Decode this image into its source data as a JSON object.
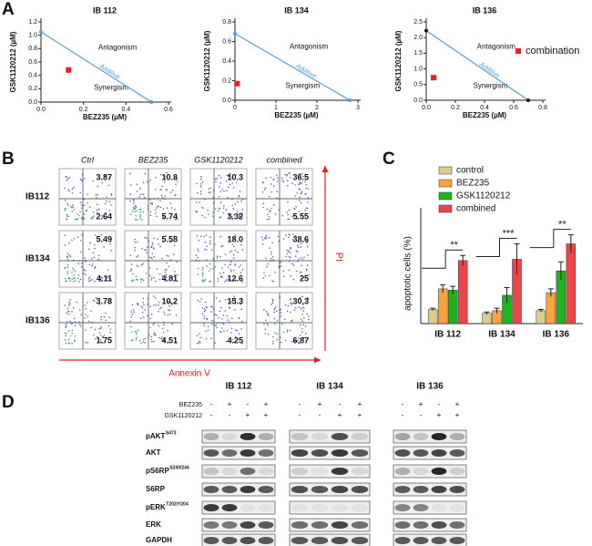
{
  "panel_labels": [
    "A",
    "B",
    "C",
    "D"
  ],
  "chart_data": [
    {
      "type": "isobologram",
      "title": "IB 112",
      "x_label": "BEZ235 (µM)",
      "y_label": "GSK1120212 (µM)",
      "xlim": [
        0,
        0.6
      ],
      "xticks": [
        {
          "value": 0,
          "label": "0.0"
        },
        {
          "value": 0.2,
          "label": "0.2"
        },
        {
          "value": 0.4,
          "label": "0.4"
        },
        {
          "value": 0.6,
          "label": "0.6"
        }
      ],
      "ylim": [
        0,
        1.2
      ],
      "yticks": [
        {
          "value": 0,
          "label": "0.0"
        },
        {
          "value": 0.2,
          "label": "0.2"
        },
        {
          "value": 0.4,
          "label": "0.4"
        },
        {
          "value": 0.6,
          "label": "0.6"
        },
        {
          "value": 0.8,
          "label": "0.8"
        },
        {
          "value": 1,
          "label": "1.0"
        },
        {
          "value": 1.2,
          "label": "1.2"
        }
      ],
      "annotations": [
        "Antagonism",
        "Synergism"
      ],
      "series": [
        {
          "name": "Additive",
          "type": "line",
          "color": "#5b9bd5",
          "marker_color": "#5b9bd5",
          "x": [
            0,
            0.52
          ],
          "values": [
            1.05,
            0
          ]
        },
        {
          "type": "scatter",
          "color": "#e8202a",
          "x": [
            0.13
          ],
          "values": [
            0.48
          ]
        }
      ]
    },
    {
      "type": "isobologram",
      "title": "IB 134",
      "x_label": "BEZ235 (µM)",
      "y_label": "GSK1120212 (µM)",
      "xlim": [
        0,
        3
      ],
      "xticks": [
        0,
        1,
        2,
        3
      ],
      "ylim": [
        0,
        0.8
      ],
      "yticks": [
        {
          "value": 0,
          "label": "0.0"
        },
        {
          "value": 0.2,
          "label": "0.2"
        },
        {
          "value": 0.4,
          "label": "0.4"
        },
        {
          "value": 0.6,
          "label": "0.6"
        },
        {
          "value": 0.8,
          "label": "0.8"
        }
      ],
      "annotations": [
        "Antagonism",
        "Synergism"
      ],
      "series": [
        {
          "name": "Additive",
          "type": "line",
          "color": "#5b9bd5",
          "marker_color": "#5b9bd5",
          "x": [
            0,
            2.8
          ],
          "values": [
            0.68,
            0
          ]
        },
        {
          "type": "scatter",
          "color": "#e8202a",
          "x": [
            0.05
          ],
          "values": [
            0.17
          ]
        }
      ]
    },
    {
      "type": "isobologram",
      "title": "IB 136",
      "x_label": "BEZ235 (µM)",
      "y_label": "GSK1120212 (µM)",
      "xlim": [
        0,
        0.8
      ],
      "xticks": [
        {
          "value": 0,
          "label": "0.0"
        },
        {
          "value": 0.2,
          "label": "0.2"
        },
        {
          "value": 0.4,
          "label": "0.4"
        },
        {
          "value": 0.6,
          "label": "0.6"
        },
        {
          "value": 0.8,
          "label": "0.8"
        }
      ],
      "ylim": [
        0,
        2.5
      ],
      "yticks": [
        {
          "value": 0,
          "label": "0.0"
        },
        {
          "value": 0.5,
          "label": "0.5"
        },
        {
          "value": 1,
          "label": "1.0"
        },
        {
          "value": 1.5,
          "label": "1.5"
        },
        {
          "value": 2,
          "label": "2.0"
        },
        {
          "value": 2.5,
          "label": "2.5"
        }
      ],
      "annotations": [
        "Antagonism",
        "Synergism"
      ],
      "series": [
        {
          "name": "Additive",
          "type": "line",
          "color": "#5b9bd5",
          "marker_color": "#111111",
          "x": [
            0,
            0.7
          ],
          "values": [
            2.22,
            0
          ]
        },
        {
          "name": "combination",
          "type": "scatter",
          "color": "#e8202a",
          "x": [
            0.05
          ],
          "values": [
            0.72
          ]
        }
      ]
    },
    {
      "type": "bar",
      "y_label": "apoptotic cells (%)",
      "categories": [
        "IB 112",
        "IB 134",
        "IB 136"
      ],
      "ylim": [
        0,
        90
      ],
      "series": [
        {
          "name": "control",
          "color": "#d9cf8c",
          "values": [
            11,
            8,
            10
          ],
          "errors": [
            1,
            1,
            1
          ]
        },
        {
          "name": "BEZ235",
          "color": "#f7a440",
          "values": [
            27,
            10,
            24
          ],
          "errors": [
            3,
            2,
            3
          ]
        },
        {
          "name": "GSK1120212",
          "color": "#1fb21f",
          "values": [
            26,
            22,
            41
          ],
          "errors": [
            3,
            6,
            7
          ]
        },
        {
          "name": "combined",
          "color": "#e8464a",
          "values": [
            49,
            50,
            62
          ],
          "errors": [
            4,
            12,
            7
          ]
        }
      ],
      "annotations": [
        "**",
        "***",
        "**"
      ]
    }
  ],
  "flow": {
    "columns": [
      "Ctrl",
      "BEZ235",
      "GSK1120212",
      "combined"
    ],
    "rows": [
      {
        "label": "IB112",
        "cells": [
          [
            "3.87",
            "2.64"
          ],
          [
            "10.8",
            "5.74"
          ],
          [
            "10.3",
            "3.32"
          ],
          [
            "36.5",
            "5.55"
          ]
        ]
      },
      {
        "label": "IB134",
        "cells": [
          [
            "5.49",
            "4.11"
          ],
          [
            "5.58",
            "4.81"
          ],
          [
            "18.0",
            "12.6"
          ],
          [
            "38.6",
            "25"
          ]
        ]
      },
      {
        "label": "IB136",
        "cells": [
          [
            "3.78",
            "1.75"
          ],
          [
            "10,2",
            "4.51"
          ],
          [
            "15.3",
            "4.25"
          ],
          [
            "30,3",
            "6.87"
          ]
        ]
      }
    ],
    "x_label": "Annexin V",
    "y_label": "PI"
  },
  "western": {
    "groups": [
      "IB 112",
      "IB 134",
      "IB 136"
    ],
    "treatments": [
      {
        "label": "BEZ235",
        "signs": [
          "-",
          "+",
          "-",
          "+"
        ]
      },
      {
        "label": "GSK1120212",
        "signs": [
          "-",
          "-",
          "+",
          "+"
        ]
      }
    ],
    "rows": [
      {
        "label": "pAKT",
        "sup": "S473"
      },
      {
        "label": "AKT"
      },
      {
        "label": "pS6RP",
        "sup": "S240/244"
      },
      {
        "label": "S6RP"
      },
      {
        "label": "pERK",
        "sup": "T202/Y204"
      },
      {
        "label": "ERK"
      },
      {
        "label": "GAPDH"
      }
    ]
  }
}
